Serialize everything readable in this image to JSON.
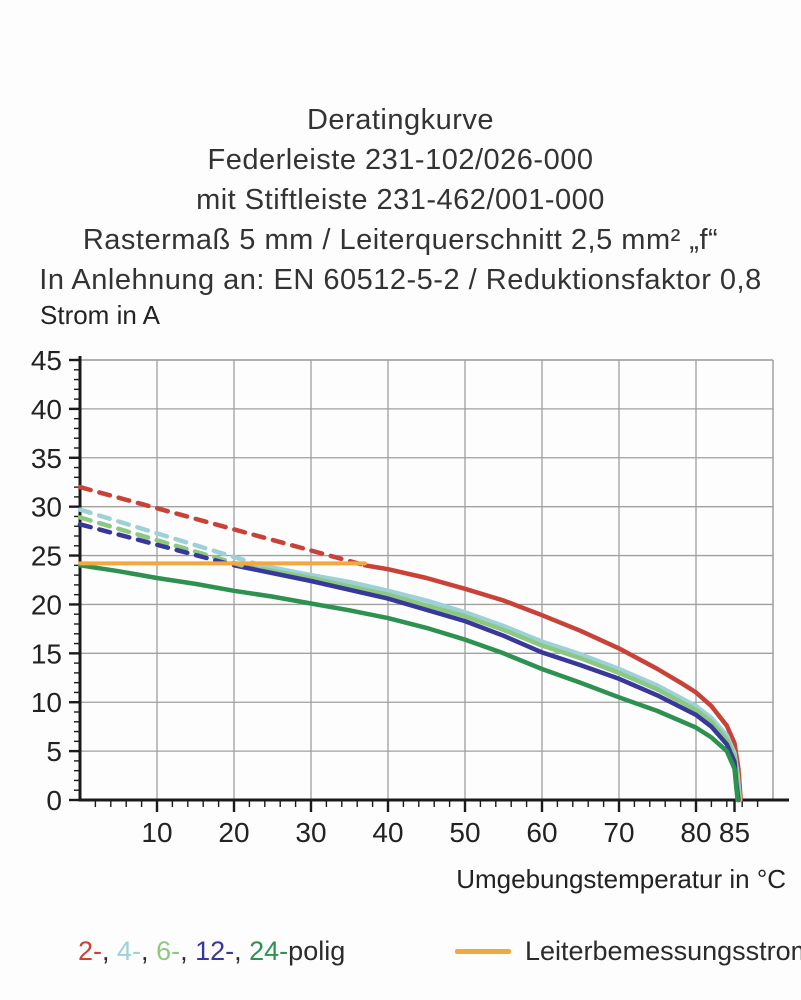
{
  "title_lines": [
    "Deratingkurve",
    "Federleiste 231-102/026-000",
    "mit Stiftleiste 231-462/001-000",
    "Rastermaß 5 mm / Leiterquerschnitt 2,5 mm² „f“",
    "In Anlehnung an: EN 60512-5-2 / Reduktionsfaktor 0,8"
  ],
  "legend": {
    "poles_suffix": "polig",
    "separator": ", ",
    "rated_current_label": "Leiterbemessungsstrom"
  },
  "colors": {
    "red": "#c94237",
    "cyan": "#9dd1da",
    "light_green": "#8cc87f",
    "navy": "#38379b",
    "green": "#2d9150",
    "orange": "#f2a83e",
    "grid": "#a0a0a0",
    "axis": "#1a1a1a",
    "text": "#222222"
  },
  "chart_data": {
    "type": "line",
    "title": "Deratingkurve",
    "xlabel": "Umgebungstemperatur in °C",
    "ylabel": "Strom in A",
    "xlim": [
      0,
      90
    ],
    "ylim": [
      0,
      45
    ],
    "x_major_ticks": [
      10,
      20,
      30,
      40,
      50,
      60,
      70,
      80,
      85
    ],
    "y_major_ticks": [
      0,
      5,
      10,
      15,
      20,
      25,
      30,
      35,
      40,
      45
    ],
    "x_minor_step": 2,
    "y_minor_step": 1,
    "grid": true,
    "legend_position": "bottom",
    "series": [
      {
        "name": "2-polig",
        "legend_label": "2-",
        "color": "#c94237",
        "style": "solid",
        "points": [
          [
            37,
            24
          ],
          [
            40,
            23.6
          ],
          [
            45,
            22.7
          ],
          [
            50,
            21.6
          ],
          [
            55,
            20.4
          ],
          [
            60,
            18.9
          ],
          [
            65,
            17.3
          ],
          [
            70,
            15.5
          ],
          [
            75,
            13.4
          ],
          [
            78,
            12
          ],
          [
            80,
            11
          ],
          [
            82,
            9.6
          ],
          [
            84,
            7.6
          ],
          [
            85,
            5.8
          ],
          [
            85.5,
            3.2
          ],
          [
            85.8,
            0
          ]
        ]
      },
      {
        "name": "4-polig",
        "legend_label": "4-",
        "color": "#9dd1da",
        "style": "solid",
        "points": [
          [
            23.5,
            24
          ],
          [
            30,
            23.0
          ],
          [
            35,
            22.3
          ],
          [
            40,
            21.4
          ],
          [
            45,
            20.4
          ],
          [
            50,
            19.2
          ],
          [
            55,
            17.8
          ],
          [
            60,
            16.2
          ],
          [
            65,
            14.9
          ],
          [
            70,
            13.4
          ],
          [
            75,
            11.7
          ],
          [
            80,
            9.6
          ],
          [
            82,
            8.4
          ],
          [
            84,
            6.6
          ],
          [
            85,
            4.8
          ],
          [
            85.4,
            2.6
          ],
          [
            85.7,
            0
          ]
        ]
      },
      {
        "name": "6-polig",
        "legend_label": "6-",
        "color": "#8cc87f",
        "style": "solid",
        "points": [
          [
            21,
            24
          ],
          [
            30,
            22.7
          ],
          [
            40,
            21.0
          ],
          [
            50,
            18.8
          ],
          [
            55,
            17.4
          ],
          [
            60,
            15.8
          ],
          [
            65,
            14.5
          ],
          [
            70,
            13.0
          ],
          [
            75,
            11.3
          ],
          [
            80,
            9.2
          ],
          [
            82,
            8.0
          ],
          [
            84,
            6.2
          ],
          [
            85,
            4.4
          ],
          [
            85.3,
            2.4
          ],
          [
            85.6,
            0
          ]
        ]
      },
      {
        "name": "12-polig",
        "legend_label": "12-",
        "color": "#38379b",
        "style": "solid",
        "points": [
          [
            20,
            24
          ],
          [
            30,
            22.4
          ],
          [
            40,
            20.6
          ],
          [
            50,
            18.3
          ],
          [
            55,
            16.8
          ],
          [
            60,
            15.1
          ],
          [
            65,
            13.8
          ],
          [
            70,
            12.4
          ],
          [
            75,
            10.7
          ],
          [
            80,
            8.7
          ],
          [
            82,
            7.5
          ],
          [
            84,
            5.7
          ],
          [
            85,
            3.9
          ],
          [
            85.2,
            2
          ],
          [
            85.5,
            0
          ]
        ]
      },
      {
        "name": "24-polig",
        "legend_label": "24-",
        "color": "#2d9150",
        "style": "solid",
        "points": [
          [
            0,
            24
          ],
          [
            5,
            23.4
          ],
          [
            10,
            22.7
          ],
          [
            15,
            22.1
          ],
          [
            20,
            21.4
          ],
          [
            25,
            20.8
          ],
          [
            30,
            20.1
          ],
          [
            35,
            19.4
          ],
          [
            40,
            18.6
          ],
          [
            45,
            17.6
          ],
          [
            50,
            16.4
          ],
          [
            55,
            15.0
          ],
          [
            60,
            13.4
          ],
          [
            65,
            12.0
          ],
          [
            70,
            10.5
          ],
          [
            75,
            9.1
          ],
          [
            80,
            7.4
          ],
          [
            82,
            6.4
          ],
          [
            84,
            5.0
          ],
          [
            85,
            3.2
          ],
          [
            85.2,
            1.6
          ],
          [
            85.4,
            0
          ]
        ]
      },
      {
        "name": "2-polig-dashed",
        "color": "#c94237",
        "style": "dashed",
        "points": [
          [
            0,
            32
          ],
          [
            37,
            24
          ]
        ]
      },
      {
        "name": "4-polig-dashed",
        "color": "#9dd1da",
        "style": "dashed",
        "points": [
          [
            0,
            29.7
          ],
          [
            23.5,
            24
          ]
        ]
      },
      {
        "name": "6-polig-dashed",
        "color": "#8cc87f",
        "style": "dashed",
        "points": [
          [
            0,
            28.9
          ],
          [
            21,
            24
          ]
        ]
      },
      {
        "name": "12-polig-dashed",
        "color": "#38379b",
        "style": "dashed",
        "points": [
          [
            0,
            28.2
          ],
          [
            20,
            24
          ]
        ]
      },
      {
        "name": "Leiterbemessungsstrom",
        "color": "#f2a83e",
        "style": "solid",
        "points": [
          [
            0,
            24.2
          ],
          [
            37,
            24.2
          ]
        ]
      }
    ]
  }
}
